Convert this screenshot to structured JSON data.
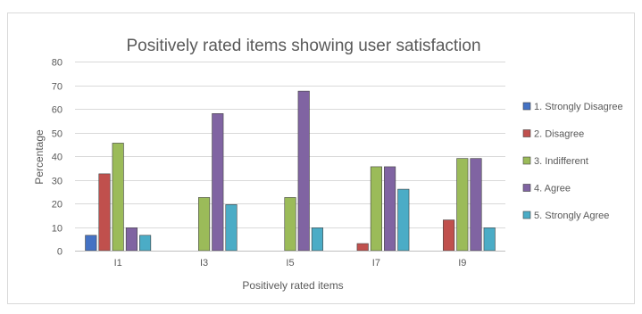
{
  "chart_data": {
    "type": "bar",
    "title": "Positively rated items showing user satisfaction",
    "xlabel": "Positively rated items",
    "ylabel": "Percentage",
    "ylim": [
      0,
      80
    ],
    "yticks": [
      0,
      10,
      20,
      30,
      40,
      50,
      60,
      70,
      80
    ],
    "categories": [
      "I1",
      "I3",
      "I5",
      "I7",
      "I9"
    ],
    "grid": true,
    "legend_position": "right",
    "series": [
      {
        "name": "1. Strongly Disagree",
        "color": "#4472c4",
        "values": [
          6.5,
          0,
          0,
          0,
          0
        ]
      },
      {
        "name": "2. Disagree",
        "color": "#c0504d",
        "values": [
          32.5,
          0,
          0,
          3,
          13
        ]
      },
      {
        "name": "3. Indifferent",
        "color": "#9bbb59",
        "values": [
          45.5,
          22.5,
          22.5,
          35.5,
          39
        ]
      },
      {
        "name": "4. Agree",
        "color": "#8064a2",
        "values": [
          9.7,
          58,
          67.5,
          35.5,
          39
        ]
      },
      {
        "name": "5. Strongly Agree",
        "color": "#4bacc6",
        "values": [
          6.5,
          19.5,
          9.7,
          26,
          9.7
        ]
      }
    ]
  }
}
